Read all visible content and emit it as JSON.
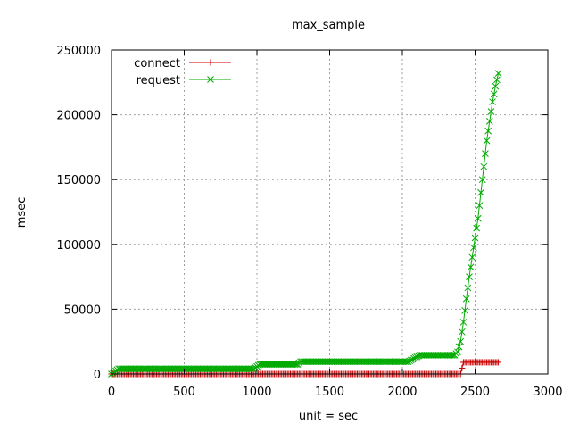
{
  "chart_data": {
    "type": "line",
    "title": "max_sample",
    "xlabel": "unit = sec",
    "ylabel": "msec",
    "xlim": [
      0,
      3000
    ],
    "ylim": [
      0,
      250000
    ],
    "xticks": [
      0,
      500,
      1000,
      1500,
      2000,
      2500,
      3000
    ],
    "yticks": [
      0,
      50000,
      100000,
      150000,
      200000,
      250000
    ],
    "grid": true,
    "legend_position": "top-left",
    "series": [
      {
        "name": "connect",
        "color": "#cc0000",
        "marker": "plus",
        "x": [
          0,
          2400,
          2420,
          2660
        ],
        "y": [
          0,
          0,
          9000,
          9000
        ]
      },
      {
        "name": "request",
        "color": "#00aa00",
        "marker": "cross",
        "x": [
          0,
          50,
          980,
          1020,
          1280,
          1300,
          2040,
          2080,
          2120,
          2360,
          2380,
          2400,
          2420,
          2440,
          2460,
          2480,
          2500,
          2520,
          2540,
          2560,
          2580,
          2600,
          2620,
          2640,
          2660
        ],
        "y": [
          0,
          4000,
          4000,
          7500,
          7500,
          9500,
          9500,
          12000,
          14500,
          14500,
          17000,
          25000,
          40000,
          58000,
          75000,
          90000,
          105000,
          120000,
          140000,
          160000,
          180000,
          195000,
          210000,
          222000,
          232000
        ]
      }
    ]
  }
}
